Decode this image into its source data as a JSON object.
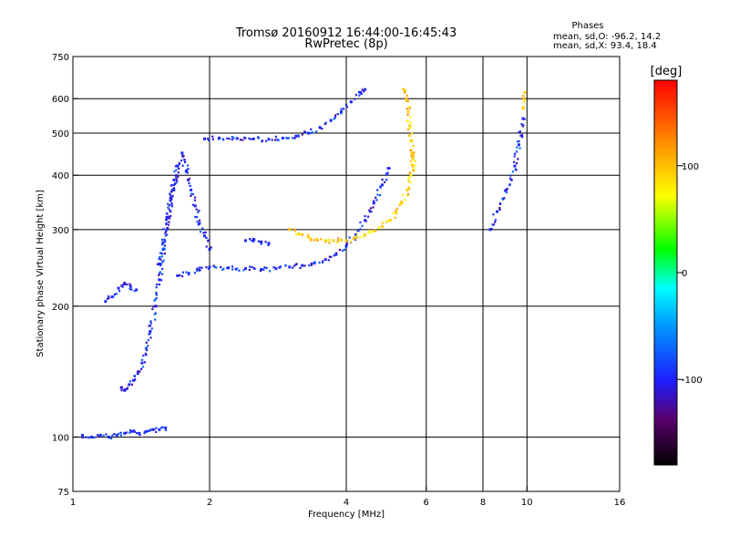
{
  "chart_data": {
    "type": "scatter",
    "title": "Tromsø 20160912 16:44:00-16:45:43",
    "subtitle": "RwPretec (8p)",
    "xlabel": "Frequency [MHz]",
    "ylabel": "Stationary phase Virtual Height [km]",
    "x_scale": "log",
    "y_scale": "log",
    "xlim": [
      1,
      16
    ],
    "ylim": [
      75,
      750
    ],
    "x_ticks": [
      1,
      2,
      4,
      6,
      8,
      10,
      16
    ],
    "y_ticks": [
      75,
      100,
      200,
      300,
      400,
      500,
      600,
      750
    ],
    "grid": true,
    "legend": {
      "title": "Phases",
      "lines": [
        "mean, sd,O: -96.2, 14.2",
        "mean, sd,X:  93.4, 18.4"
      ],
      "placement": "top-right"
    },
    "colorbar": {
      "label": "[deg]",
      "ticks": [
        100,
        0,
        -100
      ],
      "range": [
        -180,
        180
      ],
      "colormap": "rainbow"
    },
    "series": [
      {
        "name": "O",
        "phase_deg": -96.2,
        "traces": [
          {
            "x": [
              1.05,
              1.1,
              1.15,
              1.2,
              1.25,
              1.3,
              1.35,
              1.4,
              1.45,
              1.5,
              1.55,
              1.6
            ],
            "y": [
              101,
              100,
              101,
              100,
              101,
              102,
              103,
              102,
              103,
              104,
              104,
              105
            ]
          },
          {
            "x": [
              1.28,
              1.3,
              1.33,
              1.36,
              1.39,
              1.42,
              1.45,
              1.48,
              1.52,
              1.55,
              1.58,
              1.62,
              1.66,
              1.7
            ],
            "y": [
              130,
              128,
              132,
              135,
              140,
              148,
              160,
              175,
              200,
              230,
              270,
              320,
              370,
              420
            ]
          },
          {
            "x": [
              1.18,
              1.22,
              1.26,
              1.3,
              1.34,
              1.38
            ],
            "y": [
              205,
              210,
              220,
              225,
              222,
              218
            ]
          },
          {
            "x": [
              1.55,
              1.58,
              1.61,
              1.64,
              1.67,
              1.7,
              1.74,
              1.78,
              1.82,
              1.86,
              1.9,
              1.95,
              2.0
            ],
            "y": [
              250,
              280,
              320,
              350,
              390,
              420,
              450,
              410,
              370,
              340,
              310,
              290,
              270
            ]
          },
          {
            "x": [
              1.7,
              1.8,
              1.9,
              2.0,
              2.2,
              2.4,
              2.6,
              2.8,
              3.0,
              3.2,
              3.4,
              3.6,
              3.8,
              4.0,
              4.2,
              4.4,
              4.6,
              4.8,
              4.95
            ],
            "y": [
              235,
              238,
              242,
              246,
              245,
              244,
              243,
              244,
              246,
              248,
              251,
              256,
              263,
              275,
              292,
              315,
              345,
              380,
              415
            ]
          },
          {
            "x": [
              1.95,
              2.1,
              2.3,
              2.5,
              2.7,
              2.9,
              3.1,
              3.3,
              3.5,
              3.7,
              3.9,
              4.1,
              4.3,
              4.4
            ],
            "y": [
              485,
              487,
              486,
              485,
              484,
              487,
              492,
              500,
              515,
              535,
              560,
              590,
              620,
              630
            ]
          },
          {
            "x": [
              2.4,
              2.5,
              2.6,
              2.7
            ],
            "y": [
              283,
              285,
              281,
              279
            ]
          },
          {
            "x": [
              8.3,
              8.6,
              9.0,
              9.4,
              9.6,
              9.8
            ],
            "y": [
              300,
              330,
              370,
              420,
              470,
              540
            ]
          }
        ]
      },
      {
        "name": "X",
        "phase_deg": 93.4,
        "traces": [
          {
            "x": [
              3.0,
              3.15,
              3.3,
              3.45,
              3.6,
              3.75,
              3.9
            ],
            "y": [
              300,
              293,
              288,
              285,
              283,
              283,
              284
            ]
          },
          {
            "x": [
              4.0,
              4.2,
              4.4,
              4.6,
              4.8,
              5.0,
              5.15,
              5.3,
              5.45,
              5.55,
              5.6
            ],
            "y": [
              283,
              287,
              292,
              298,
              305,
              315,
              328,
              345,
              370,
              400,
              450
            ]
          },
          {
            "x": [
              5.35,
              5.42,
              5.48,
              5.52,
              5.56,
              5.6,
              5.62
            ],
            "y": [
              630,
              600,
              560,
              520,
              480,
              440,
              410
            ]
          },
          {
            "x": [
              9.8,
              9.85,
              9.9
            ],
            "y": [
              570,
              600,
              620
            ]
          }
        ]
      }
    ]
  }
}
